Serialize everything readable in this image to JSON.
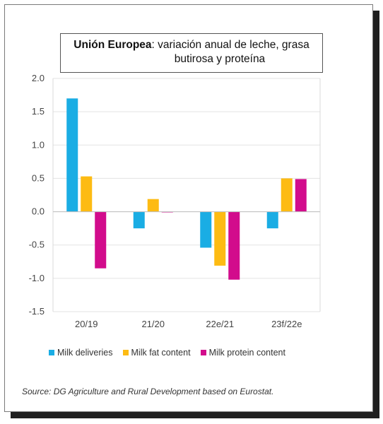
{
  "chart_data": {
    "type": "bar",
    "title_bold": "Unión Europea",
    "title_rest": ": variación anual de leche, grasa",
    "title_line2": "butirosa y proteína",
    "categories": [
      "20/19",
      "21/20",
      "22e/21",
      "23f/22e"
    ],
    "series": [
      {
        "name": "Milk deliveries",
        "color": "#1aade4",
        "values": [
          1.7,
          -0.25,
          -0.54,
          -0.25
        ]
      },
      {
        "name": "Milk fat content",
        "color": "#fdbb13",
        "values": [
          0.53,
          0.19,
          -0.81,
          0.5
        ]
      },
      {
        "name": "Milk protein content",
        "color": "#d20c8c",
        "values": [
          -0.85,
          0.0,
          -1.02,
          0.49
        ]
      }
    ],
    "y_ticks": [
      "2.0",
      "1.5",
      "1.0",
      "0.5",
      "0.0",
      "-0.5",
      "-1.0",
      "-1.5"
    ],
    "ylim": [
      -1.5,
      2.0
    ],
    "grid": true,
    "legend_position": "bottom",
    "source": "Source: DG Agriculture and Rural Development based on Eurostat."
  }
}
